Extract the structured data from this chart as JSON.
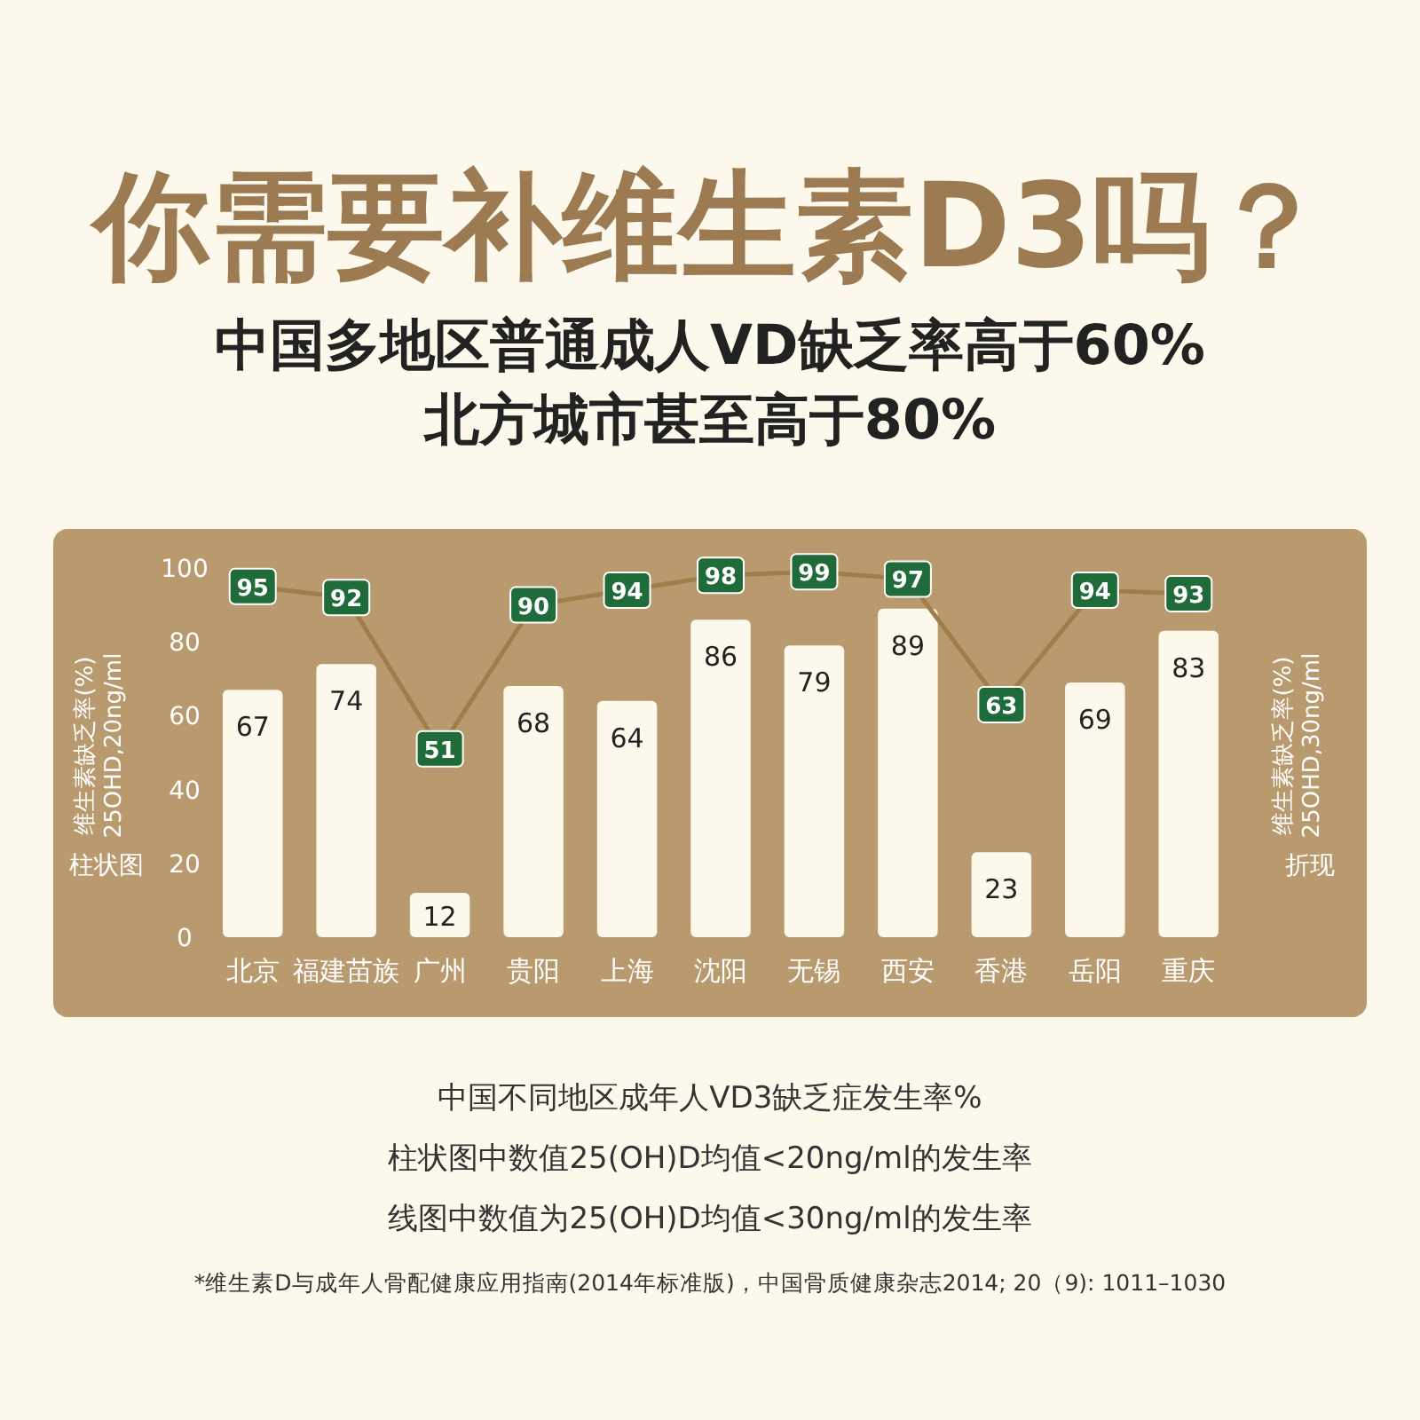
{
  "chart_data": {
    "type": "bar",
    "title": "你需要补维生素D3吗？",
    "subtitle": "中国多地区普通成人VD缺乏率高于60%\n北方城市甚至高于80%",
    "ylabel": "维生素缺乏率(%)\n25OHD,20ng/ml",
    "y2label": "维生素缺乏率(%)\n25OHD,30ng/ml",
    "categories": [
      "北京",
      "福建苗族",
      "广州",
      "贵阳",
      "上海",
      "沈阳",
      "无锡",
      "西安",
      "香港",
      "岳阳",
      "重庆"
    ],
    "series": [
      {
        "color": "#fdf8ec",
        "values": [
          67,
          74,
          12,
          68,
          64,
          86,
          79,
          89,
          23,
          69,
          83
        ]
      },
      {
        "type": "line",
        "marker": "square",
        "color": "#a07d4a",
        "values": [
          95,
          92,
          51,
          90,
          94,
          98,
          99,
          97,
          63,
          94,
          93
        ]
      }
    ],
    "ylim": [
      0,
      100
    ],
    "yticks": [
      0,
      20,
      40,
      60,
      80,
      100
    ],
    "tick_labels": "y",
    "data_labels": true,
    "grid": false,
    "annotations": [
      "柱状图",
      "折现",
      "中国不同地区成年人VD3缺乏症发生率%",
      "柱状图中数值25(OH)D均值<20ng/ml的发生率",
      "线图中数值为25(OH)D均值<30ng/ml的发生率",
      "*维生素D与成年人骨配健康应用指南(2014年标准版)，中国骨质健康杂志2014; 20（9): 1011–1030"
    ]
  }
}
